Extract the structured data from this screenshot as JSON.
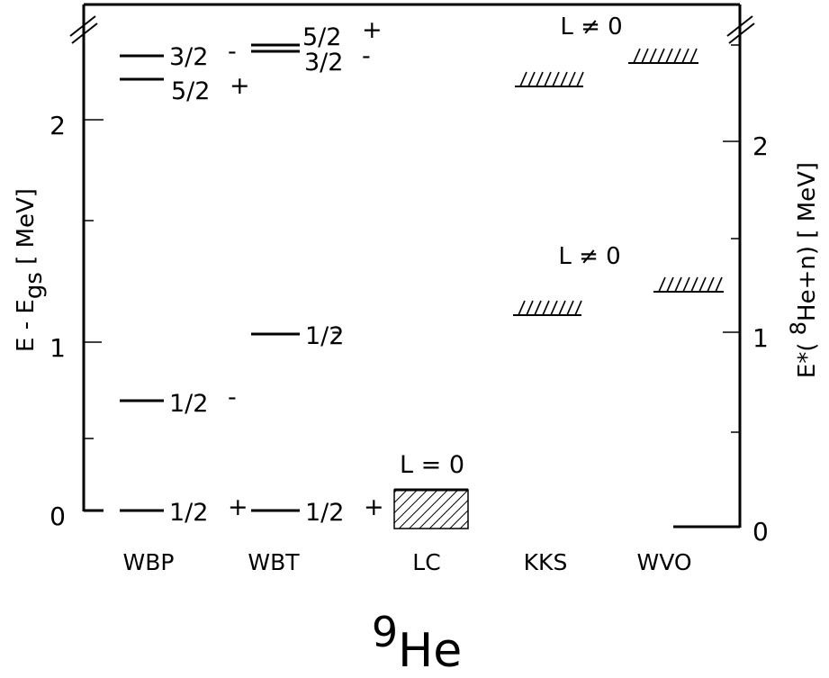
{
  "title": {
    "base": "He",
    "mass": "9"
  },
  "left_axis": {
    "label_main": "E - E",
    "label_sub": "gs",
    "label_unit": " [ MeV]",
    "ticks": [
      "0",
      "1",
      "2"
    ]
  },
  "right_axis": {
    "label_pre": "E*( ",
    "label_sup": "8",
    "label_post": "He+n) [ MeV]",
    "ticks": [
      "0",
      "1",
      "2"
    ]
  },
  "columns": [
    "WBP",
    "WBT",
    "LC",
    "KKS",
    "WVO"
  ],
  "chart_data": {
    "type": "level-scheme",
    "left_axis_range_MeV": [
      0,
      2.4
    ],
    "right_axis_range_MeV": [
      0,
      2.3
    ],
    "columns": {
      "WBP": [
        {
          "energy": 0.0,
          "spin": "1/2",
          "parity": "+"
        },
        {
          "energy": 0.57,
          "spin": "1/2",
          "parity": "-"
        },
        {
          "energy": 2.2,
          "spin": "5/2",
          "parity": "+"
        },
        {
          "energy": 2.33,
          "spin": "3/2",
          "parity": "-"
        }
      ],
      "WBT": [
        {
          "energy": 0.0,
          "spin": "1/2",
          "parity": "+"
        },
        {
          "energy": 0.91,
          "spin": "1/2",
          "parity": "-"
        },
        {
          "energy": 2.37,
          "spin": "5/2",
          "parity": "+"
        },
        {
          "energy": 2.34,
          "spin": "3/2",
          "parity": "-"
        }
      ],
      "LC": [
        {
          "energy_range": [
            0.0,
            0.12
          ],
          "note": "L = 0"
        }
      ],
      "KKS": [
        {
          "energy_center": 1.05,
          "note": ""
        },
        {
          "energy_center": 2.2,
          "note": ""
        }
      ],
      "WVO": [
        {
          "energy_center": 1.17,
          "note": "L ≠ 0"
        },
        {
          "energy_center": 2.32,
          "note": "L ≠ 0"
        }
      ]
    }
  },
  "labels": {
    "wbp_l1": "1/2",
    "wbp_p1": "+",
    "wbp_l2": "1/2",
    "wbp_p2": "-",
    "wbp_l3": "5/2",
    "wbp_p3": "+",
    "wbp_l4": "3/2",
    "wbp_p4": "-",
    "wbt_l1": "1/2",
    "wbt_p1": "+",
    "wbt_l2": "1/2",
    "wbt_p2": "-",
    "wbt_l3": "5/2",
    "wbt_p3": "+",
    "wbt_l4": "3/2",
    "wbt_p4": "-",
    "lc_note": "L = 0",
    "wvo_note_low": "L ≠ 0",
    "wvo_note_high": "L ≠ 0"
  }
}
